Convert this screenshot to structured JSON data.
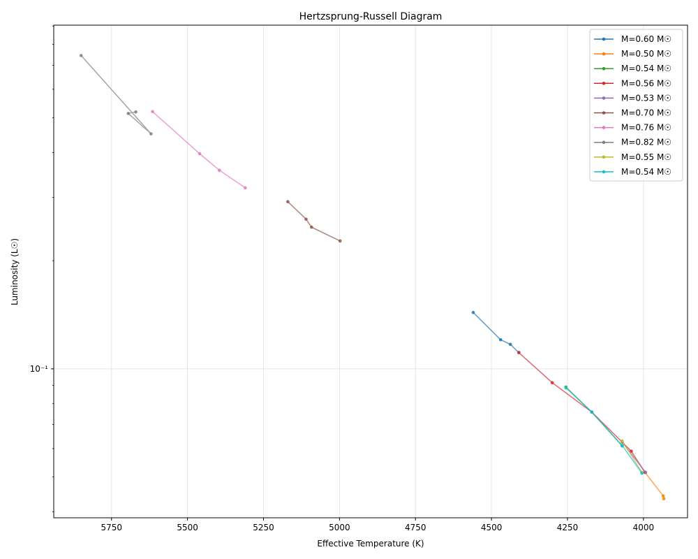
{
  "chart_data": {
    "type": "line",
    "title": "Hertzsprung-Russell Diagram",
    "xlabel": "Effective Temperature (K)",
    "ylabel": "Luminosity (L☉)",
    "x_inverted": true,
    "xlim": [
      5940,
      3855
    ],
    "ylim_log": [
      0.0385,
      0.905
    ],
    "y_scale": "log",
    "grid": true,
    "legend_position": "top-right",
    "x_ticks": [
      5750,
      5500,
      5250,
      5000,
      4750,
      4500,
      4250,
      4000
    ],
    "x_tick_labels": [
      "5750",
      "5500",
      "5250",
      "5000",
      "4750",
      "4500",
      "4250",
      "4000"
    ],
    "y_ticks": [
      0.1
    ],
    "y_tick_labels": [
      "10⁻¹"
    ],
    "series": [
      {
        "name": "M=0.60 M☉",
        "color": "#1f77b4",
        "points": [
          [
            4560,
            0.1435
          ],
          [
            4470,
            0.1205
          ],
          [
            4438,
            0.117
          ],
          [
            4410,
            0.111
          ]
        ]
      },
      {
        "name": "M=0.50 M☉",
        "color": "#ff7f0e",
        "points": [
          [
            3995,
            0.0515
          ],
          [
            3935,
            0.0443
          ],
          [
            3933,
            0.0435
          ]
        ]
      },
      {
        "name": "M=0.54 M☉",
        "color": "#2ca02c",
        "points": [
          [
            4255,
            0.089
          ],
          [
            4170,
            0.0758
          ],
          [
            4070,
            0.061
          ]
        ]
      },
      {
        "name": "M=0.56 M☉",
        "color": "#d62728",
        "points": [
          [
            4410,
            0.111
          ],
          [
            4300,
            0.0915
          ],
          [
            4170,
            0.0758
          ],
          [
            4040,
            0.059
          ],
          [
            3995,
            0.0515
          ]
        ]
      },
      {
        "name": "M=0.53 M☉",
        "color": "#9467bd",
        "points": [
          [
            4070,
            0.0625
          ],
          [
            3993,
            0.0515
          ]
        ]
      },
      {
        "name": "M=0.70 M☉",
        "color": "#8c564b",
        "points": [
          [
            5170,
            0.292
          ],
          [
            5110,
            0.261
          ],
          [
            5092,
            0.248
          ],
          [
            4998,
            0.227
          ]
        ]
      },
      {
        "name": "M=0.76 M☉",
        "color": "#e377c2",
        "points": [
          [
            5615,
            0.52
          ],
          [
            5460,
            0.397
          ],
          [
            5395,
            0.357
          ],
          [
            5310,
            0.319
          ]
        ]
      },
      {
        "name": "M=0.82 M☉",
        "color": "#7f7f7f",
        "points": [
          [
            5850,
            0.745
          ],
          [
            5620,
            0.451
          ],
          [
            5695,
            0.514
          ],
          [
            5670,
            0.519
          ]
        ]
      },
      {
        "name": "M=0.55 M☉",
        "color": "#bcbd22",
        "points": [
          [
            4070,
            0.063
          ],
          [
            4005,
            0.0515
          ]
        ]
      },
      {
        "name": "M=0.54 M☉",
        "color": "#17becf",
        "points": [
          [
            4255,
            0.0885
          ],
          [
            4170,
            0.0758
          ],
          [
            4070,
            0.0612
          ],
          [
            4005,
            0.0512
          ]
        ]
      }
    ]
  }
}
